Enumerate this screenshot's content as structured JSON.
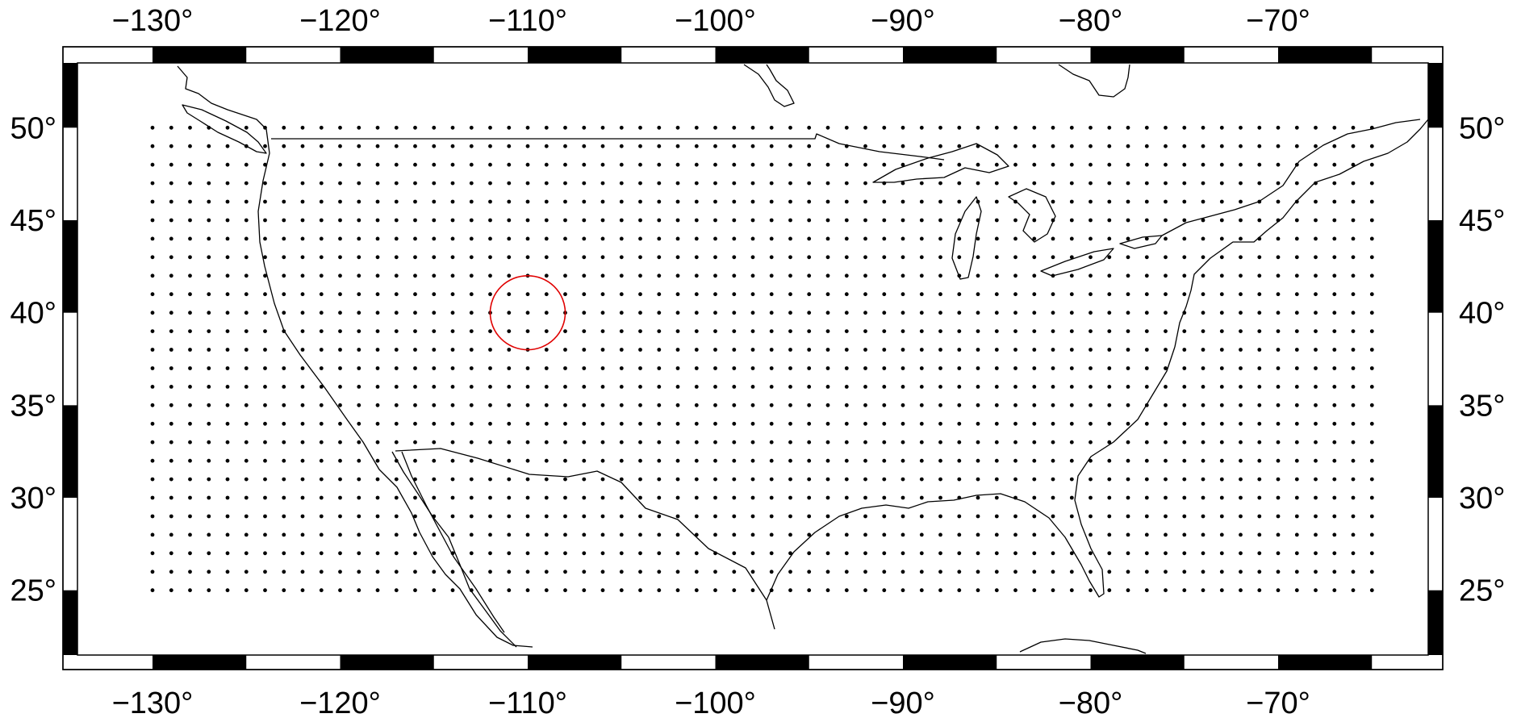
{
  "map": {
    "projection": "cartesian lon/lat",
    "frame": "fancy checkered border",
    "lon_range": [
      -134,
      -62
    ],
    "lat_range": [
      21.5,
      53.5
    ],
    "lon_ticks": [
      -130,
      -120,
      -110,
      -100,
      -90,
      -80,
      -70
    ],
    "lat_ticks": [
      25,
      30,
      35,
      40,
      45,
      50
    ],
    "lon_tick_labels": [
      "−130°",
      "−120°",
      "−110°",
      "−100°",
      "−90°",
      "−80°",
      "−70°"
    ],
    "lat_tick_labels": [
      "25°",
      "30°",
      "35°",
      "40°",
      "45°",
      "50°"
    ],
    "frame_colors": {
      "fill": "#000000",
      "blank": "#ffffff"
    },
    "coastline_color": "#000000",
    "points": {
      "description_free": true,
      "lon_start": -130,
      "lon_end": -65,
      "lon_step": 1,
      "lat_start": 25,
      "lat_end": 50,
      "lat_step": 1,
      "color": "#000000"
    },
    "circle": {
      "center_lon": -110,
      "center_lat": 40,
      "radius_deg": 2,
      "color": "#e00000"
    }
  }
}
